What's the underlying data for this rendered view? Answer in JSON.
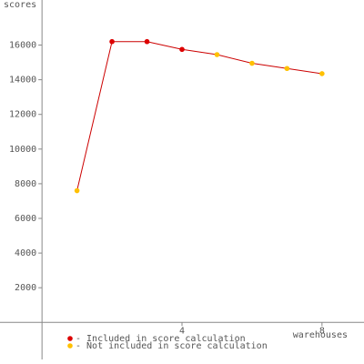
{
  "chart_data": {
    "type": "line",
    "x_label": "warehouses",
    "y_label": "scores",
    "x": [
      1,
      2,
      3,
      4,
      5,
      6,
      7,
      8
    ],
    "values": [
      7600,
      16200,
      16200,
      15750,
      15450,
      14950,
      14650,
      14350
    ],
    "included": [
      false,
      true,
      true,
      true,
      false,
      false,
      false,
      false
    ],
    "line_color": "#cc0000",
    "included_color": "#dd0000",
    "excluded_color": "#ffc000",
    "xlim": [
      -1.2,
      9.2
    ],
    "ylim": [
      -2400,
      18600
    ],
    "xticks": [
      4,
      8
    ],
    "yticks": [
      2000,
      4000,
      6000,
      8000,
      10000,
      12000,
      14000,
      16000
    ],
    "legend": [
      {
        "label": "- Included in score calculation",
        "color": "#dd0000"
      },
      {
        "label": "- Not included in score calculation",
        "color": "#ffc000"
      }
    ]
  }
}
